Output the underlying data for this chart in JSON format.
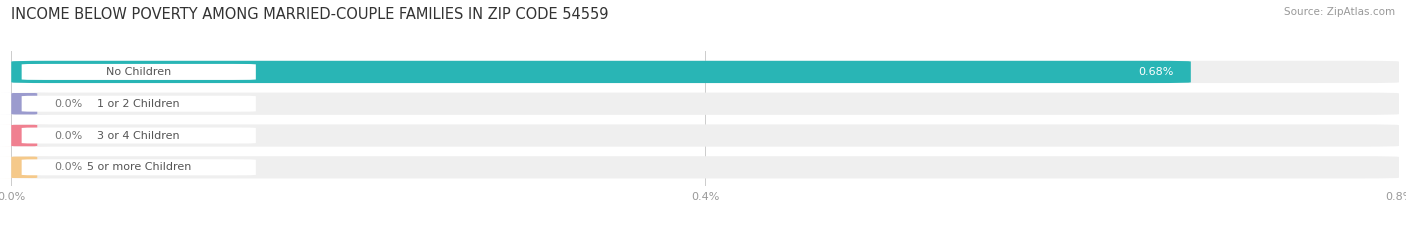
{
  "title": "INCOME BELOW POVERTY AMONG MARRIED-COUPLE FAMILIES IN ZIP CODE 54559",
  "source": "Source: ZipAtlas.com",
  "categories": [
    "No Children",
    "1 or 2 Children",
    "3 or 4 Children",
    "5 or more Children"
  ],
  "values": [
    0.68,
    0.0,
    0.0,
    0.0
  ],
  "bar_colors": [
    "#29b5b5",
    "#9b9bce",
    "#f08090",
    "#f5c98a"
  ],
  "bar_bg_color": "#efefef",
  "xlim_max": 0.8,
  "xtick_vals": [
    0.0,
    0.4,
    0.8
  ],
  "xtick_labels": [
    "0.0%",
    "0.4%",
    "0.8%"
  ],
  "value_labels": [
    "0.68%",
    "0.0%",
    "0.0%",
    "0.0%"
  ],
  "figsize": [
    14.06,
    2.33
  ],
  "background_color": "#ffffff",
  "title_fontsize": 10.5,
  "bar_height": 0.7,
  "label_fontsize": 8,
  "value_fontsize": 8,
  "source_fontsize": 7.5
}
